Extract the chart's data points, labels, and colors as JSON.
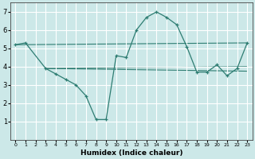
{
  "xlabel": "Humidex (Indice chaleur)",
  "background_color": "#cce8e8",
  "grid_color": "#ffffff",
  "line_color": "#2e7d72",
  "xlim": [
    -0.5,
    23.5
  ],
  "ylim": [
    0,
    7.5
  ],
  "yticks": [
    1,
    2,
    3,
    4,
    5,
    6,
    7
  ],
  "xticks": [
    0,
    1,
    2,
    3,
    4,
    5,
    6,
    7,
    8,
    9,
    10,
    11,
    12,
    13,
    14,
    15,
    16,
    17,
    18,
    19,
    20,
    21,
    22,
    23
  ],
  "main_x": [
    0,
    1,
    3,
    4,
    5,
    6,
    7,
    8,
    9,
    10,
    11,
    12,
    13,
    14,
    15,
    16,
    17,
    18,
    19,
    20,
    21,
    22,
    23
  ],
  "main_y": [
    5.2,
    5.3,
    3.9,
    3.6,
    3.3,
    3.0,
    2.4,
    1.1,
    1.1,
    4.6,
    4.5,
    6.0,
    6.7,
    7.0,
    6.7,
    6.3,
    5.1,
    3.7,
    3.7,
    4.1,
    3.5,
    3.9,
    5.3
  ],
  "ref_lines": [
    {
      "x": [
        0,
        23
      ],
      "y": [
        5.2,
        5.3
      ]
    },
    {
      "x": [
        3,
        23
      ],
      "y": [
        3.9,
        3.75
      ]
    },
    {
      "x": [
        3,
        23
      ],
      "y": [
        3.9,
        4.0
      ]
    }
  ]
}
